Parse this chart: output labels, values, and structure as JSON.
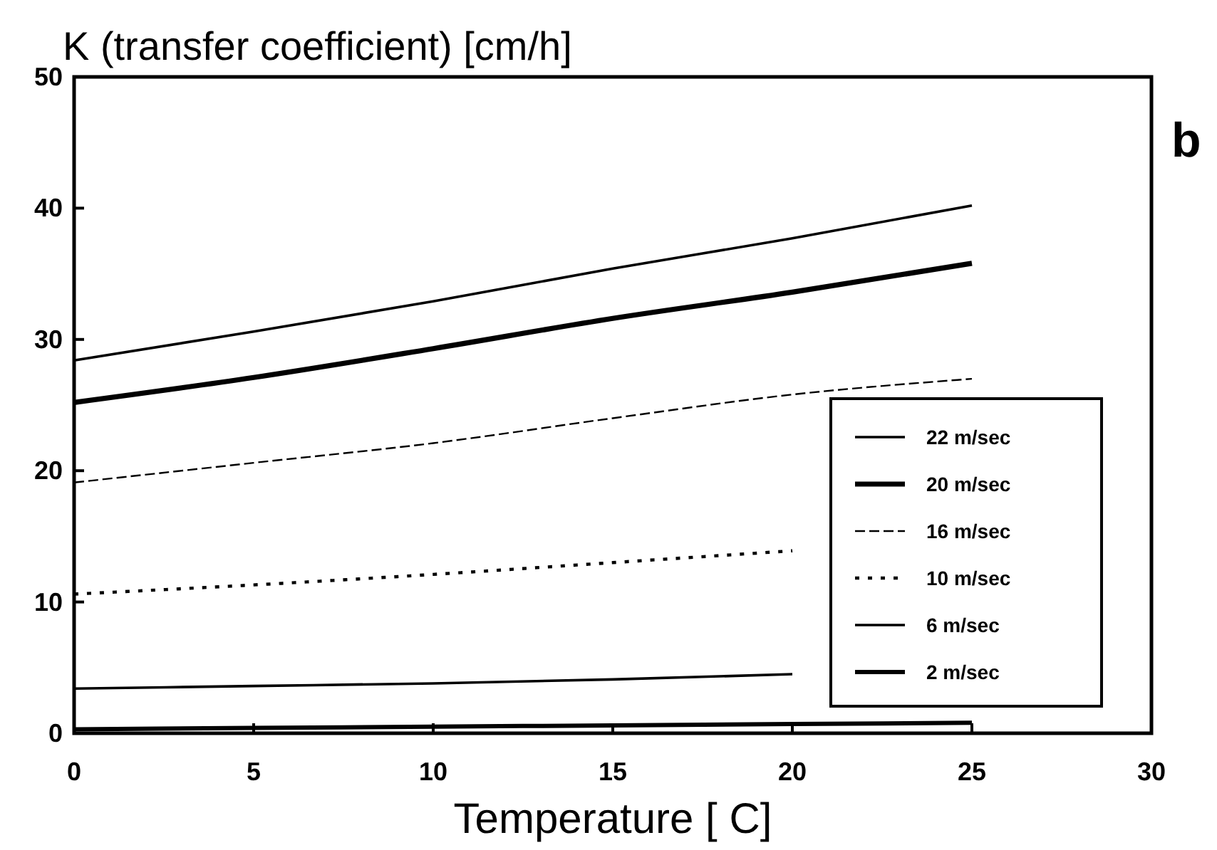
{
  "chart_data": {
    "type": "line",
    "ylabel": "K (transfer coefficient) [cm/h]",
    "xlabel": "Temperature [ C]",
    "annotations": [
      "b"
    ],
    "xlim": [
      0,
      30
    ],
    "ylim": [
      0,
      50
    ],
    "xticks": [
      0,
      5,
      10,
      15,
      20,
      25,
      30
    ],
    "yticks": [
      0,
      10,
      20,
      30,
      40,
      50
    ],
    "x": [
      0,
      5,
      10,
      15,
      20,
      25
    ],
    "series": [
      {
        "name": "22 m/sec",
        "color": "#000000",
        "line_style": "solid",
        "values": [
          28.4,
          30.6,
          32.9,
          35.4,
          37.7,
          40.2
        ]
      },
      {
        "name": "20 m/sec",
        "color": "#000000",
        "line_style": "solid",
        "values": [
          25.2,
          27.1,
          29.3,
          31.6,
          33.6,
          35.8
        ]
      },
      {
        "name": "16 m/sec",
        "color": "#000000",
        "line_style": "dashed",
        "values": [
          19.1,
          20.6,
          22.1,
          24.0,
          25.8,
          27.0
        ]
      },
      {
        "name": "10 m/sec",
        "color": "#000000",
        "line_style": "dotted",
        "values": [
          10.6,
          11.3,
          12.1,
          13.0,
          13.9,
          null
        ]
      },
      {
        "name": "6 m/sec",
        "color": "#000000",
        "line_style": "solid",
        "values": [
          3.4,
          3.6,
          3.8,
          4.1,
          4.5,
          null
        ]
      },
      {
        "name": "2 m/sec",
        "color": "#000000",
        "line_style": "solid",
        "values": [
          0.3,
          0.4,
          0.5,
          0.6,
          0.7,
          0.8
        ]
      }
    ],
    "legend": "bottom right"
  }
}
